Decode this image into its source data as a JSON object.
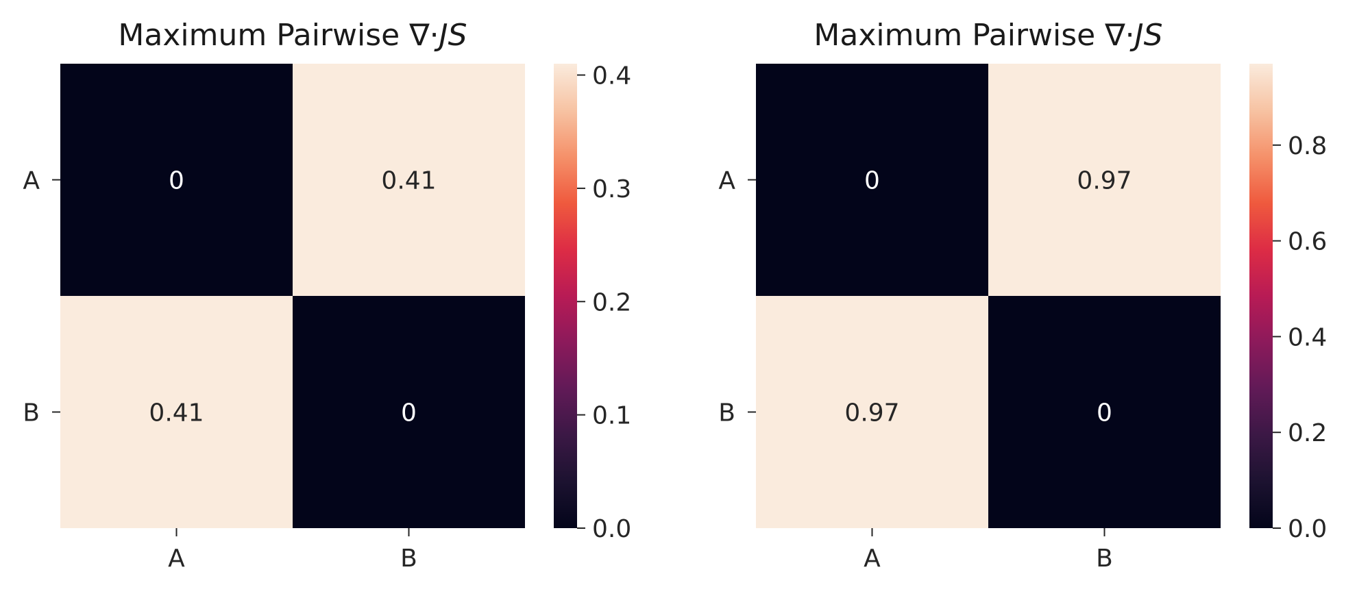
{
  "chart_data": [
    {
      "type": "heatmap",
      "title_prefix": "Maximum Pairwise ∇·",
      "title_italic": "JS",
      "rows": [
        "A",
        "B"
      ],
      "cols": [
        "A",
        "B"
      ],
      "values": [
        [
          0,
          0.41
        ],
        [
          0.41,
          0
        ]
      ],
      "cell_labels": [
        [
          "0",
          "0.41"
        ],
        [
          "0.41",
          "0"
        ]
      ],
      "colorbar": {
        "min": 0,
        "max": 0.41,
        "ticks": [
          "0.0",
          "0.1",
          "0.2",
          "0.3",
          "0.4"
        ],
        "tick_values": [
          0,
          0.1,
          0.2,
          0.3,
          0.4
        ]
      },
      "colormap": "rocket"
    },
    {
      "type": "heatmap",
      "title_prefix": "Maximum Pairwise ∇·",
      "title_italic": "JS",
      "rows": [
        "A",
        "B"
      ],
      "cols": [
        "A",
        "B"
      ],
      "values": [
        [
          0,
          0.97
        ],
        [
          0.97,
          0
        ]
      ],
      "cell_labels": [
        [
          "0",
          "0.97"
        ],
        [
          "0.97",
          "0"
        ]
      ],
      "colorbar": {
        "min": 0,
        "max": 0.97,
        "ticks": [
          "0.0",
          "0.2",
          "0.4",
          "0.6",
          "0.8"
        ],
        "tick_values": [
          0,
          0.2,
          0.4,
          0.6,
          0.8
        ]
      },
      "colormap": "rocket"
    }
  ]
}
